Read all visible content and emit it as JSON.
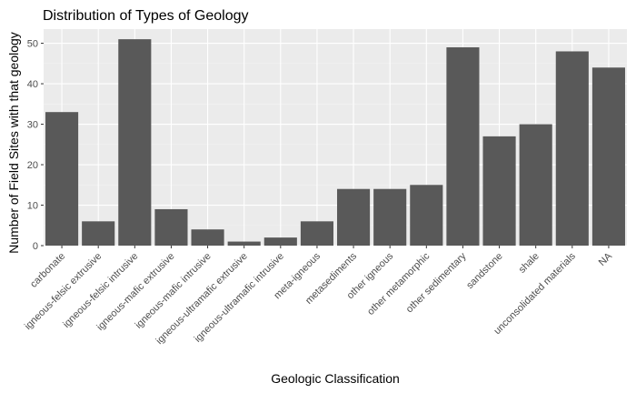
{
  "chart_data": {
    "type": "bar",
    "title": "Distribution of Types of Geology",
    "xlabel": "Geologic Classification",
    "ylabel": "Number of Field Sites with that geology",
    "categories": [
      "carbonate",
      "igneous-felsic extrusive",
      "igneous-felsic intrusive",
      "igneous-mafic extrusive",
      "igneous-mafic intrusive",
      "igneous-ultramafic extrusive",
      "igneous-ultramafic intrusive",
      "meta-igneous",
      "metasediments",
      "other igneous",
      "other metamorphic",
      "other sedimentary",
      "sandstone",
      "shale",
      "unconsolidated materials",
      "NA"
    ],
    "values": [
      33,
      6,
      51,
      9,
      4,
      1,
      2,
      6,
      14,
      14,
      15,
      49,
      27,
      30,
      48,
      44
    ],
    "ylim": [
      0,
      53.5
    ],
    "yticks": [
      0,
      10,
      20,
      30,
      40,
      50
    ],
    "grid": true,
    "colors": {
      "bar": "#595959",
      "panel": "#ebebeb",
      "grid_major": "#ffffff",
      "grid_minor": "#f2f2f2"
    }
  }
}
